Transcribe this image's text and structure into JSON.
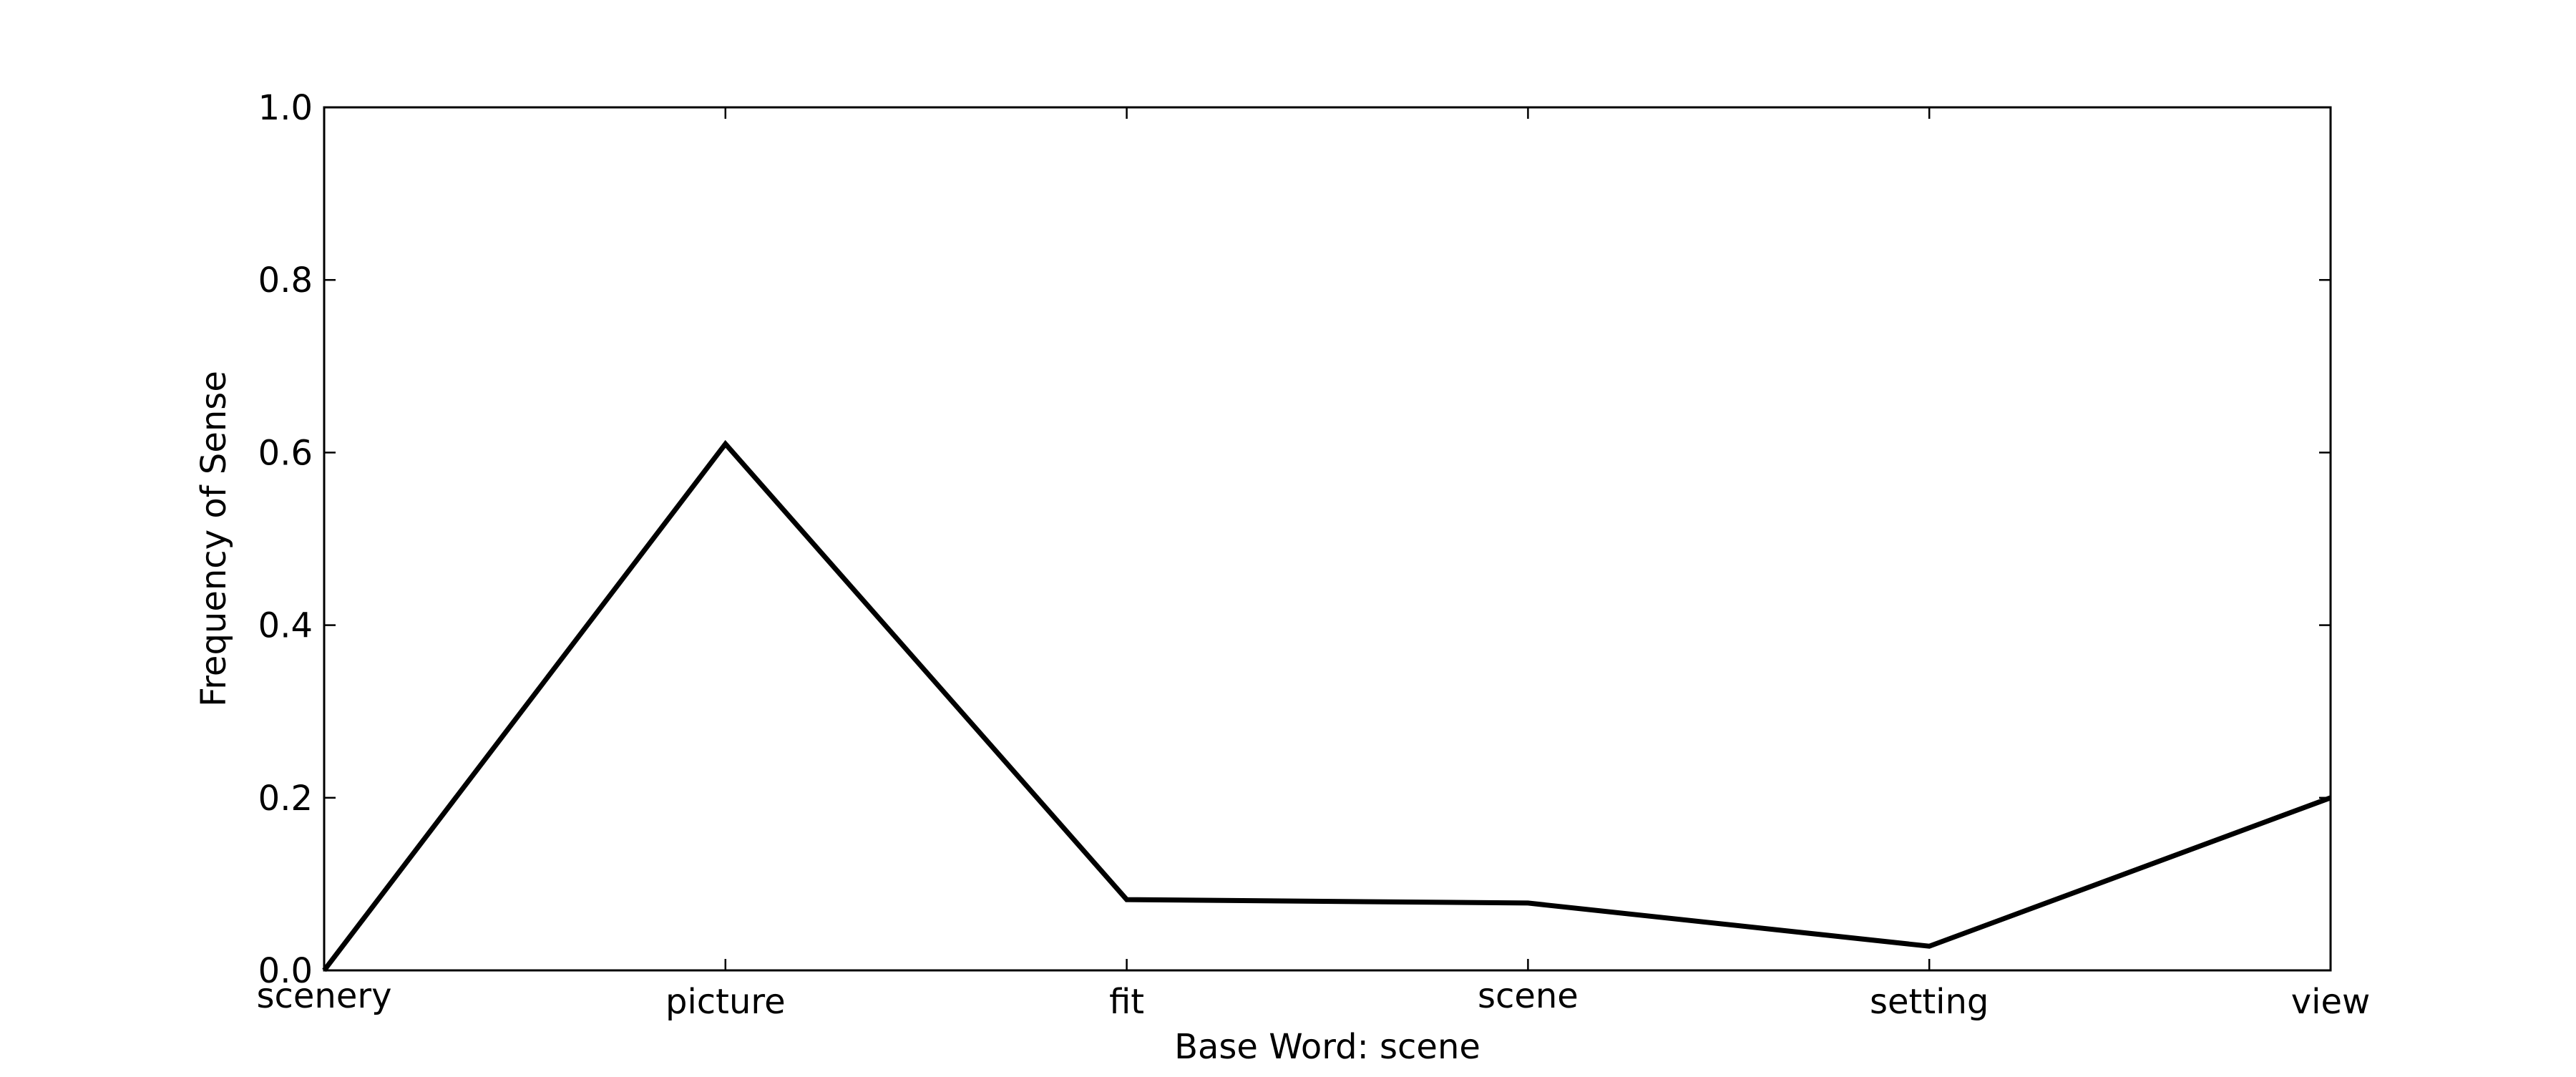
{
  "chart_data": {
    "type": "line",
    "title": "",
    "xlabel": "Base Word: scene",
    "ylabel": "Frequency of Sense",
    "categories": [
      "scenery",
      "picture",
      "fit",
      "scene",
      "setting",
      "view"
    ],
    "series": [
      {
        "values": [
          0.0,
          0.61,
          0.082,
          0.078,
          0.028,
          0.2
        ],
        "color": "#000000"
      }
    ],
    "ylim": [
      0.0,
      1.0
    ],
    "yticks": [
      "0.0",
      "0.2",
      "0.4",
      "0.6",
      "0.8",
      "1.0"
    ],
    "grid": false,
    "legend": "none"
  }
}
